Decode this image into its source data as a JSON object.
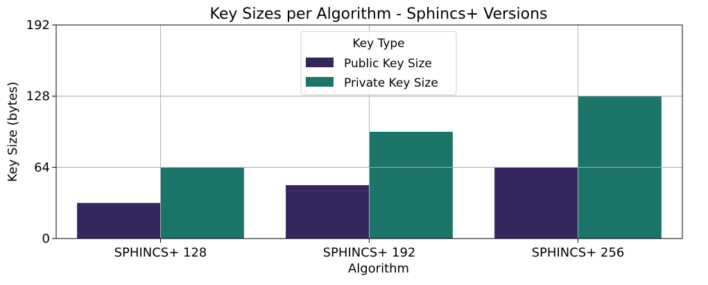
{
  "chart_data": {
    "type": "bar",
    "title": "Key Sizes per Algorithm - Sphincs+ Versions",
    "xlabel": "Algorithm",
    "ylabel": "Key Size (bytes)",
    "categories": [
      "SPHINCS+ 128",
      "SPHINCS+ 192",
      "SPHINCS+ 256"
    ],
    "series": [
      {
        "name": "Public Key Size",
        "values": [
          32,
          48,
          64
        ],
        "color": "#35265f"
      },
      {
        "name": "Private Key Size",
        "values": [
          64,
          96,
          128
        ],
        "color": "#1b7569"
      }
    ],
    "ylim": [
      0,
      192
    ],
    "yticks": [
      0,
      64,
      128,
      192
    ],
    "legend": {
      "title": "Key Type",
      "position": "top-center"
    },
    "grid": true
  }
}
